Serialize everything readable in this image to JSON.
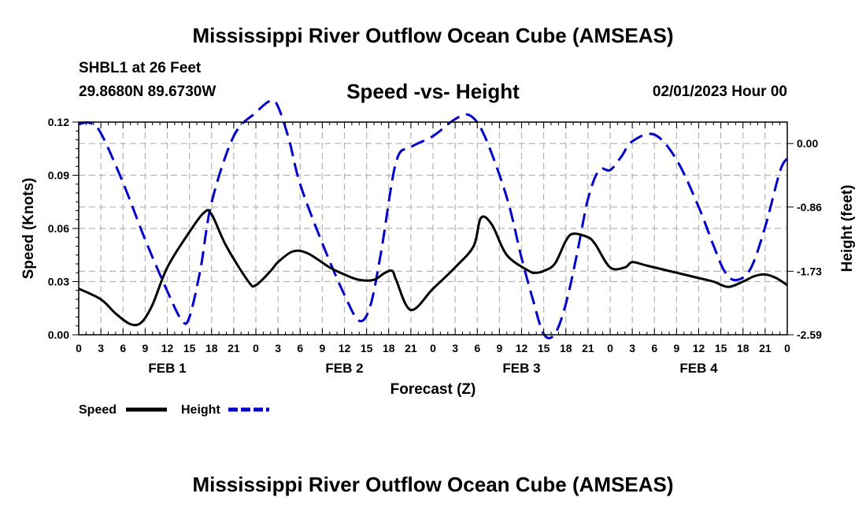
{
  "header": {
    "title": "Mississippi River Outflow Ocean Cube (AMSEAS)",
    "station": "SHBL1 at 26 Feet",
    "coords": "29.8680N  89.6730W",
    "subtitle": "Speed -vs- Height",
    "datetime": "02/01/2023 Hour 00"
  },
  "footer": {
    "title": "Mississippi River Outflow Ocean Cube (AMSEAS)"
  },
  "colors": {
    "speed": "#000000",
    "height": "#0000cc",
    "grid": "#b4b4b4"
  },
  "chart_data": {
    "type": "line",
    "title": "Speed -vs- Height",
    "xlabel": "Forecast (Z)",
    "ylabel": "Speed (Knots)",
    "y2label": "Height (feet)",
    "xlim": [
      0,
      96
    ],
    "ylim": [
      0,
      0.12
    ],
    "y2lim": [
      -2.59,
      0.29
    ],
    "x_tick_labels": [
      "0",
      "3",
      "6",
      "9",
      "12",
      "15",
      "18",
      "21",
      "0",
      "3",
      "6",
      "9",
      "12",
      "15",
      "18",
      "21",
      "0",
      "3",
      "6",
      "9",
      "12",
      "15",
      "18",
      "21",
      "0",
      "3",
      "6",
      "9",
      "12",
      "15",
      "18",
      "21",
      "0"
    ],
    "y_tick_labels": [
      "0.00",
      "0.03",
      "0.06",
      "0.09",
      "0.12"
    ],
    "y_tick_values": [
      0,
      0.03,
      0.06,
      0.09,
      0.12
    ],
    "y2_tick_labels": [
      "0.00",
      "-0.86",
      "-1.73",
      "-2.59"
    ],
    "y2_tick_values": [
      0,
      -0.86,
      -1.73,
      -2.59
    ],
    "day_labels": [
      {
        "label": "FEB 1",
        "x": 12
      },
      {
        "label": "FEB 2",
        "x": 36
      },
      {
        "label": "FEB 3",
        "x": 60
      },
      {
        "label": "FEB 4",
        "x": 84
      }
    ],
    "legend": [
      {
        "name": "Speed",
        "color": "#000000",
        "dash": false
      },
      {
        "name": "Height",
        "color": "#0000cc",
        "dash": true
      }
    ],
    "series": [
      {
        "name": "Speed",
        "axis": "left",
        "x": [
          0,
          3,
          5,
          7,
          8.5,
          10,
          12,
          15,
          17,
          18,
          20,
          23,
          24,
          26,
          27,
          29,
          31,
          34,
          36,
          38,
          40,
          41.5,
          42.5,
          43,
          45,
          48,
          51,
          53.5,
          54.5,
          56,
          58,
          61,
          62,
          63,
          64.5,
          66,
          67,
          69,
          70,
          72,
          74,
          75,
          77,
          80,
          82,
          84,
          86,
          88,
          90,
          91.5,
          93,
          94.5,
          96
        ],
        "values": [
          0.026,
          0.02,
          0.012,
          0.006,
          0.007,
          0.017,
          0.038,
          0.058,
          0.069,
          0.068,
          0.05,
          0.03,
          0.028,
          0.036,
          0.041,
          0.047,
          0.046,
          0.038,
          0.034,
          0.031,
          0.031,
          0.035,
          0.036,
          0.031,
          0.014,
          0.026,
          0.038,
          0.05,
          0.066,
          0.062,
          0.045,
          0.036,
          0.035,
          0.036,
          0.04,
          0.053,
          0.057,
          0.055,
          0.051,
          0.038,
          0.038,
          0.041,
          0.039,
          0.036,
          0.034,
          0.032,
          0.03,
          0.027,
          0.03,
          0.033,
          0.034,
          0.032,
          0.028
        ]
      },
      {
        "name": "Height",
        "axis": "right",
        "x": [
          0,
          1.5,
          3,
          6,
          9,
          12,
          14,
          15,
          16.5,
          18,
          21,
          24,
          26,
          27,
          28.5,
          30,
          33,
          36,
          38,
          39.5,
          41,
          43,
          45,
          48,
          51,
          53,
          55,
          58,
          60,
          61.5,
          63,
          64.5,
          66,
          67.5,
          69,
          70.5,
          72,
          73.5,
          75,
          78,
          81,
          84,
          86,
          87.5,
          89,
          91,
          93,
          95,
          96
        ],
        "values": [
          0.26,
          0.28,
          0.14,
          -0.53,
          -1.3,
          -2.0,
          -2.4,
          -2.35,
          -1.7,
          -0.8,
          0.1,
          0.42,
          0.58,
          0.5,
          0.05,
          -0.55,
          -1.35,
          -2.05,
          -2.4,
          -2.2,
          -1.45,
          -0.25,
          -0.05,
          0.1,
          0.33,
          0.38,
          0.1,
          -0.73,
          -1.55,
          -2.1,
          -2.58,
          -2.58,
          -2.17,
          -1.5,
          -0.75,
          -0.36,
          -0.36,
          -0.18,
          0.03,
          0.12,
          -0.22,
          -0.86,
          -1.38,
          -1.73,
          -1.85,
          -1.7,
          -1.13,
          -0.38,
          -0.2
        ]
      }
    ]
  }
}
